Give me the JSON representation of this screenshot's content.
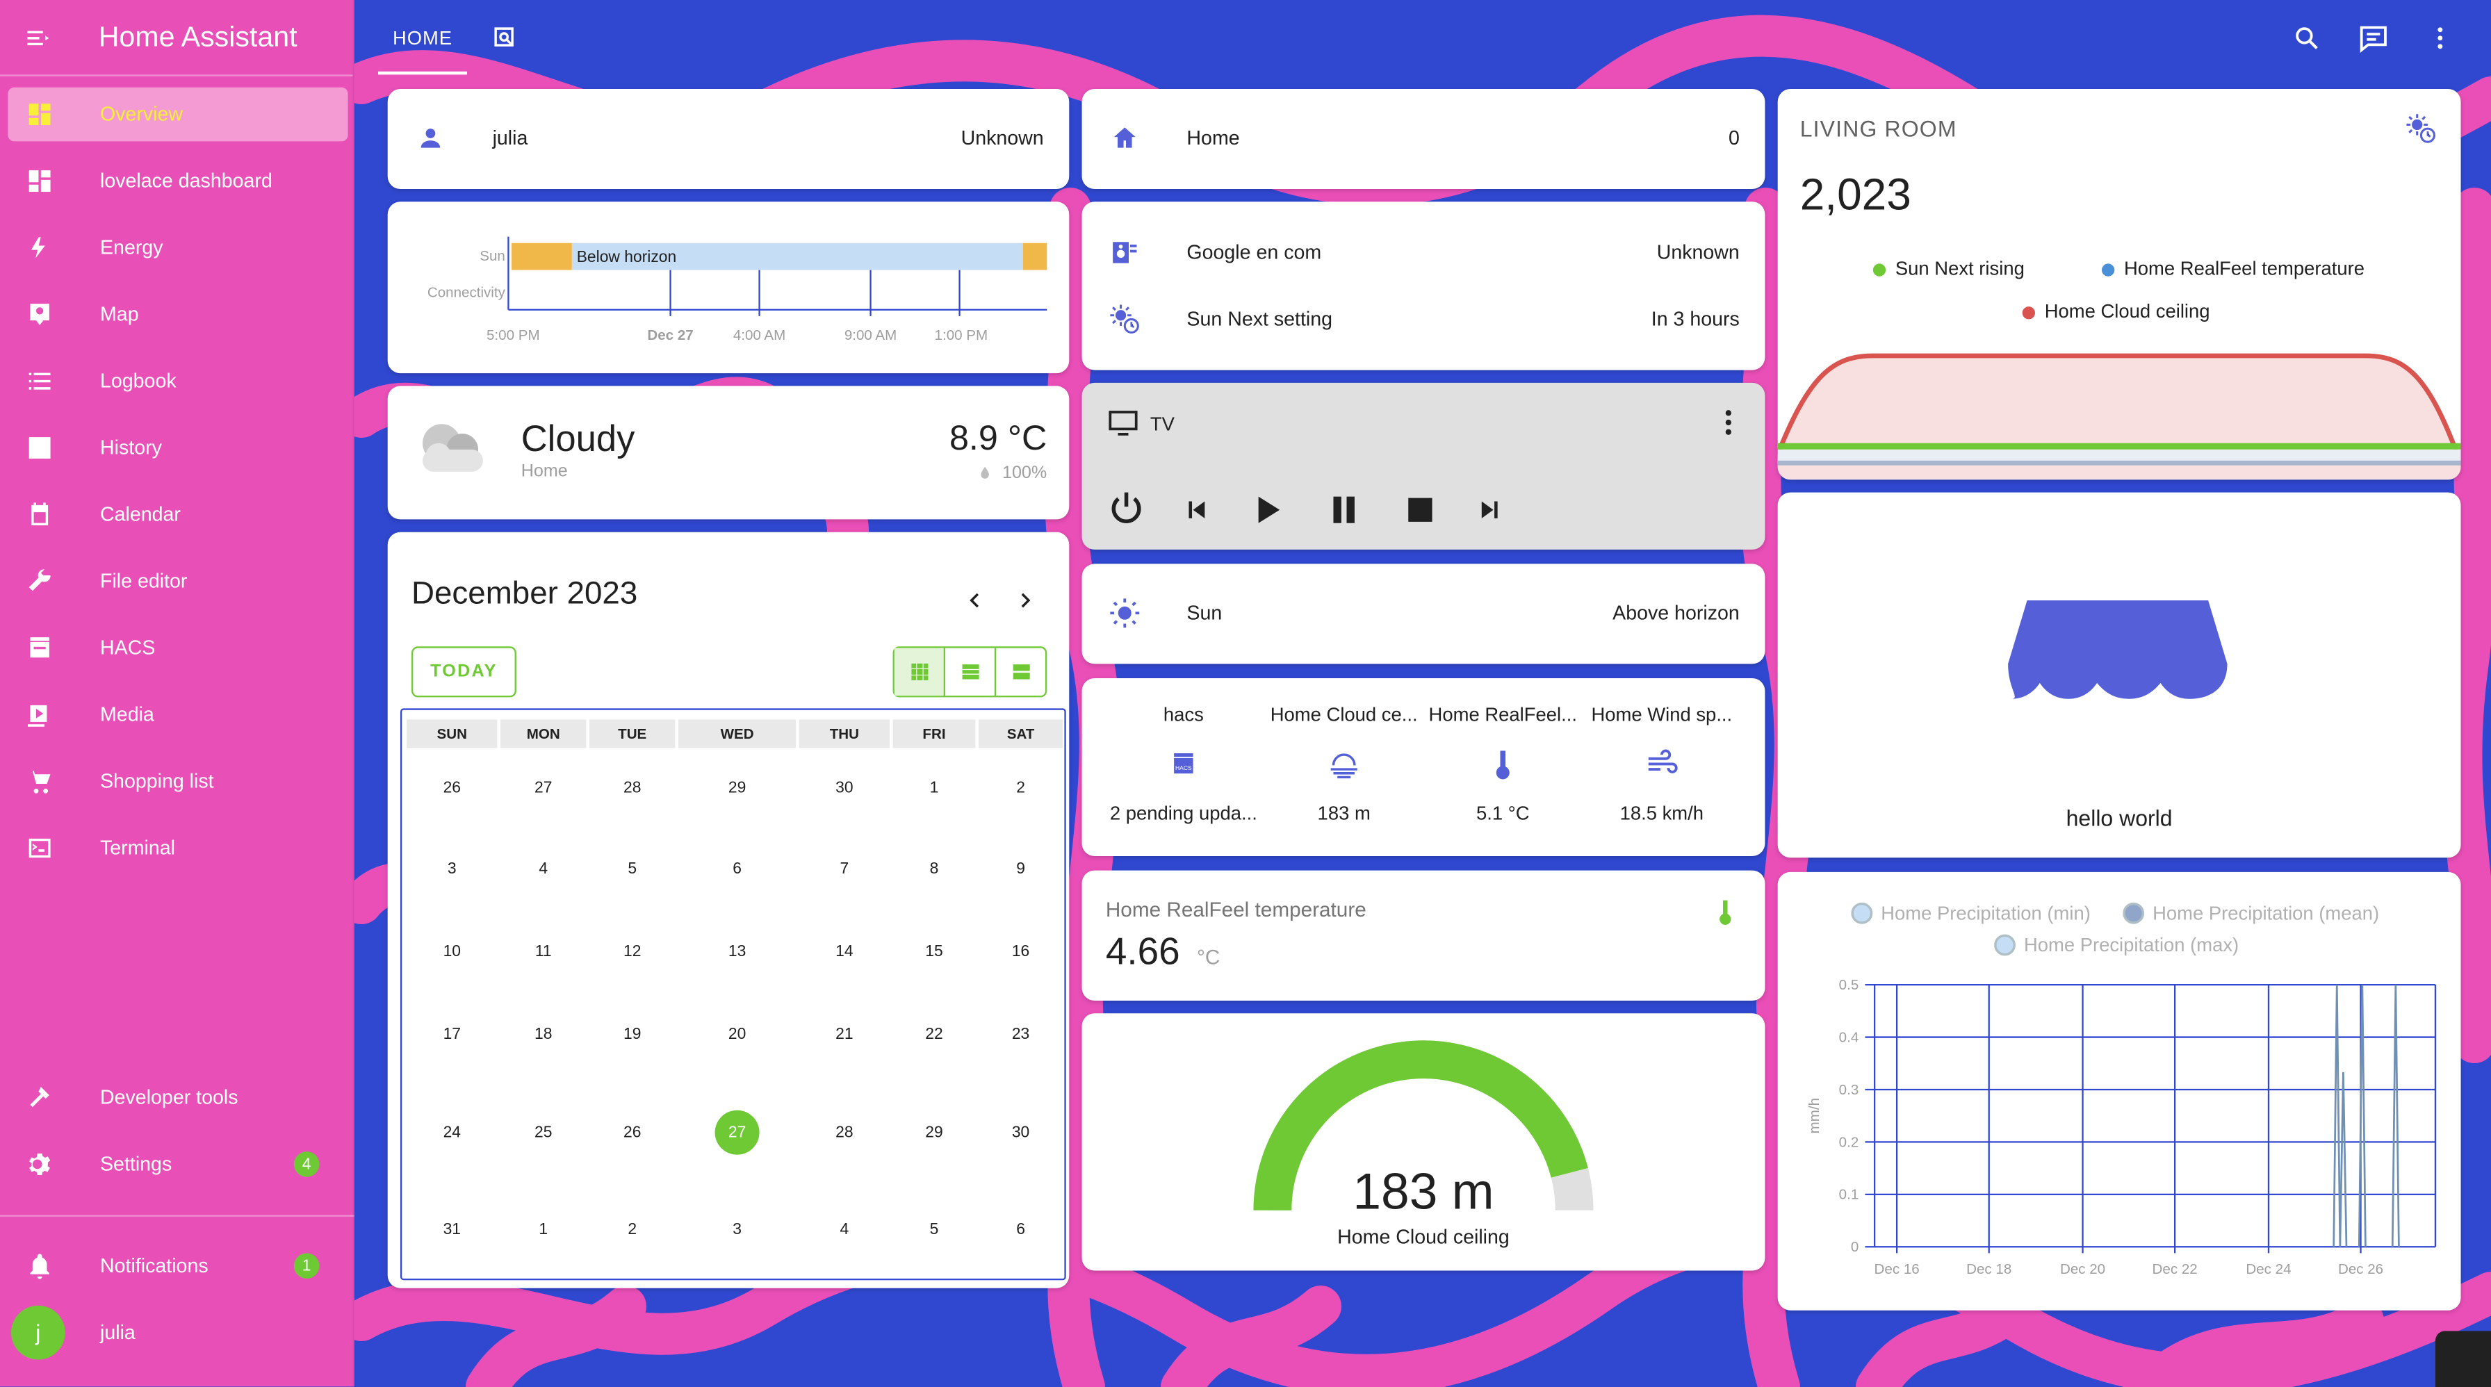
{
  "sidebar": {
    "title": "Home Assistant",
    "items": [
      {
        "label": "Overview",
        "icon": "dashboard-icon"
      },
      {
        "label": "lovelace dashboard",
        "icon": "dashboard-icon"
      },
      {
        "label": "Energy",
        "icon": "lightning-icon"
      },
      {
        "label": "Map",
        "icon": "map-icon"
      },
      {
        "label": "Logbook",
        "icon": "logbook-icon"
      },
      {
        "label": "History",
        "icon": "history-icon"
      },
      {
        "label": "Calendar",
        "icon": "calendar-icon"
      },
      {
        "label": "File editor",
        "icon": "wrench-icon"
      },
      {
        "label": "HACS",
        "icon": "hacs-icon"
      },
      {
        "label": "Media",
        "icon": "media-icon"
      },
      {
        "label": "Shopping list",
        "icon": "cart-icon"
      },
      {
        "label": "Terminal",
        "icon": "terminal-icon"
      }
    ],
    "developer_tools": "Developer tools",
    "settings": "Settings",
    "settings_badge": "4",
    "notifications": "Notifications",
    "notifications_badge": "1",
    "user": "julia",
    "user_initial": "j"
  },
  "topbar": {
    "tab_home": "HOME"
  },
  "person": {
    "name": "julia",
    "state": "Unknown"
  },
  "history": {
    "label_sun": "Sun",
    "label_conn": "Connectivity",
    "band": "Below horizon",
    "ticks": [
      "5:00 PM",
      "Dec 27",
      "4:00 AM",
      "9:00 AM",
      "1:00 PM"
    ]
  },
  "weather": {
    "condition": "Cloudy",
    "location": "Home",
    "temp": "8.9 °C",
    "humidity": "100%"
  },
  "calendar": {
    "title": "December 2023",
    "today_btn": "TODAY",
    "days": [
      "SUN",
      "MON",
      "TUE",
      "WED",
      "THU",
      "FRI",
      "SAT"
    ],
    "weeks": [
      [
        "26",
        "27",
        "28",
        "29",
        "30",
        "1",
        "2"
      ],
      [
        "3",
        "4",
        "5",
        "6",
        "7",
        "8",
        "9"
      ],
      [
        "10",
        "11",
        "12",
        "13",
        "14",
        "15",
        "16"
      ],
      [
        "17",
        "18",
        "19",
        "20",
        "21",
        "22",
        "23"
      ],
      [
        "24",
        "25",
        "26",
        "27",
        "28",
        "29",
        "30"
      ],
      [
        "31",
        "1",
        "2",
        "3",
        "4",
        "5",
        "6"
      ]
    ],
    "today": "27"
  },
  "home_zone": {
    "name": "Home",
    "state": "0"
  },
  "entities_b": [
    {
      "name": "Google en com",
      "state": "Unknown"
    },
    {
      "name": "Sun Next setting",
      "state": "In 3 hours"
    }
  ],
  "media": {
    "name": "TV"
  },
  "sun": {
    "name": "Sun",
    "state": "Above horizon"
  },
  "glance": [
    {
      "name": "hacs",
      "value": "2 pending upda..."
    },
    {
      "name": "Home Cloud ce...",
      "value": "183 m"
    },
    {
      "name": "Home RealFeel...",
      "value": "5.1 °C"
    },
    {
      "name": "Home Wind sp...",
      "value": "18.5 km/h"
    }
  ],
  "sensor": {
    "name": "Home RealFeel temperature",
    "value": "4.66",
    "unit": "°C"
  },
  "gauge": {
    "value": "183 m",
    "name": "Home Cloud ceiling",
    "fraction": 0.92
  },
  "living": {
    "title": "LIVING ROOM",
    "value": "2,023",
    "legend": [
      {
        "name": "Sun Next rising",
        "color": "#6ec934"
      },
      {
        "name": "Home RealFeel temperature",
        "color": "#4a90d9"
      },
      {
        "name": "Home Cloud ceiling",
        "color": "#d9534f"
      }
    ]
  },
  "picture": {
    "name": "hello world"
  },
  "chart_data": {
    "type": "line",
    "legend": [
      "Home Precipitation (min)",
      "Home Precipitation (mean)",
      "Home Precipitation (max)"
    ],
    "ylabel": "mm/h",
    "yticks": [
      "0.5",
      "0.4",
      "0.3",
      "0.2",
      "0.1",
      "0"
    ],
    "xticks": [
      "Dec 16",
      "Dec 18",
      "Dec 20",
      "Dec 22",
      "Dec 24",
      "Dec 26"
    ],
    "ylim": [
      0,
      0.5
    ]
  },
  "colors": {
    "accent": "#6ec934",
    "sidebar": "#e850b8",
    "primary": "#3048d0",
    "icon": "#5560d8"
  }
}
